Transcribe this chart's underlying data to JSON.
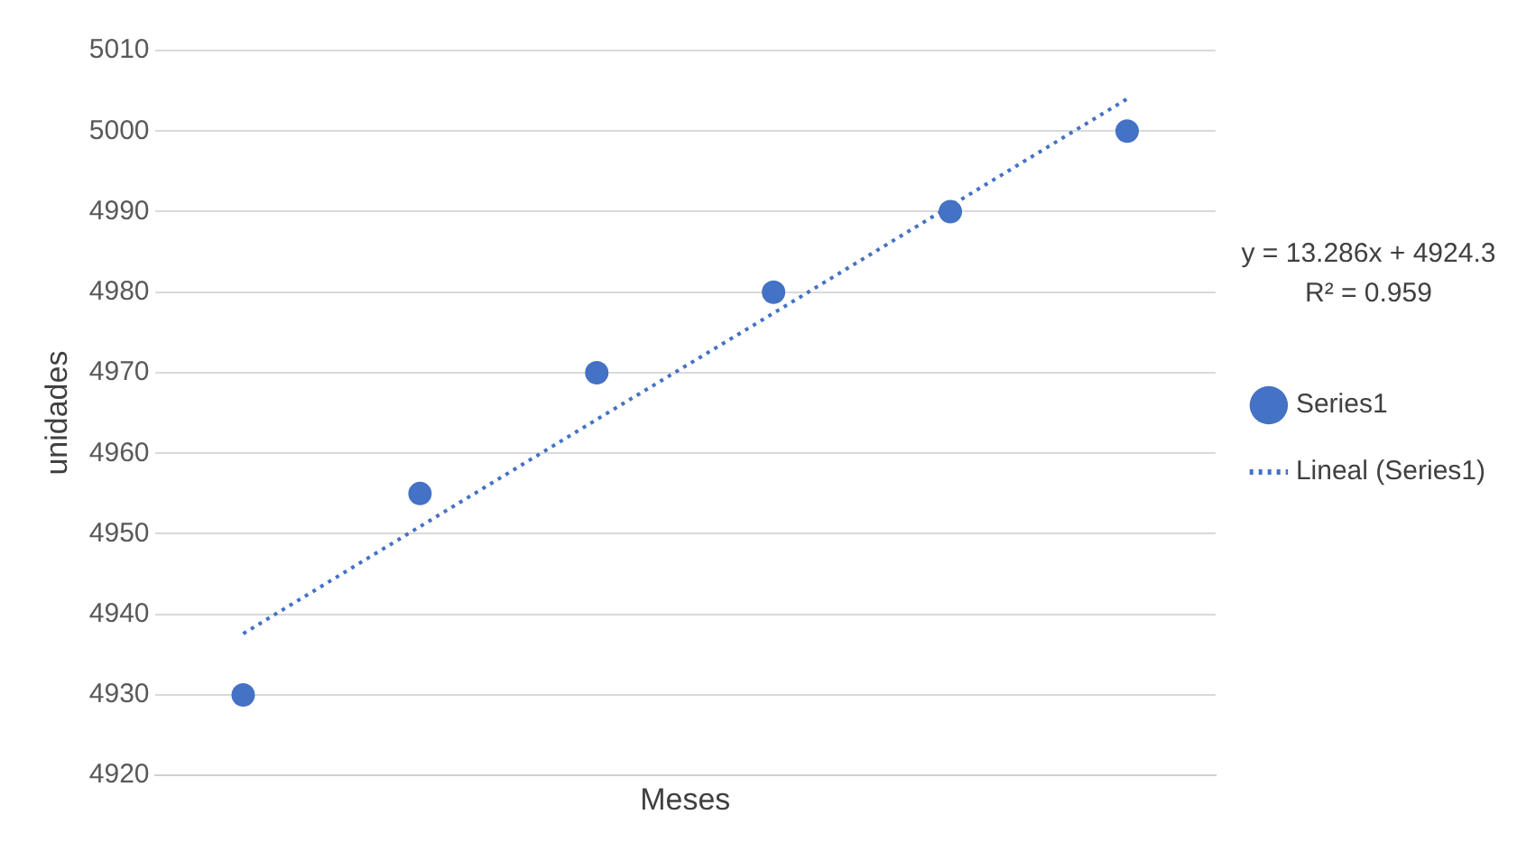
{
  "chart_data": {
    "type": "scatter",
    "xlabel": "Meses",
    "ylabel": "unidades",
    "categories": [
      null,
      null,
      null,
      null,
      null,
      null
    ],
    "ylim": [
      4920,
      5010
    ],
    "yticks": [
      4920,
      4930,
      4940,
      4950,
      4960,
      4970,
      4980,
      4990,
      5000,
      5010
    ],
    "tick_labels": "y",
    "grid": "y",
    "legend": "right",
    "marker": "circle",
    "annotations": [
      "y = 13.286x + 4924.3",
      "R² = 0.959"
    ],
    "series": [
      {
        "name": "Series1",
        "color": "#4472c4",
        "values": [
          4930,
          4955,
          4970,
          4980,
          4990,
          5000
        ]
      },
      {
        "name": "Lineal (Series1)",
        "type": "line",
        "color": "#4472c4",
        "line_style": "dotted",
        "marker": "none",
        "values": [
          4937.6,
          4950.9,
          4964.2,
          4977.4,
          4990.7,
          5004.0
        ]
      }
    ]
  }
}
